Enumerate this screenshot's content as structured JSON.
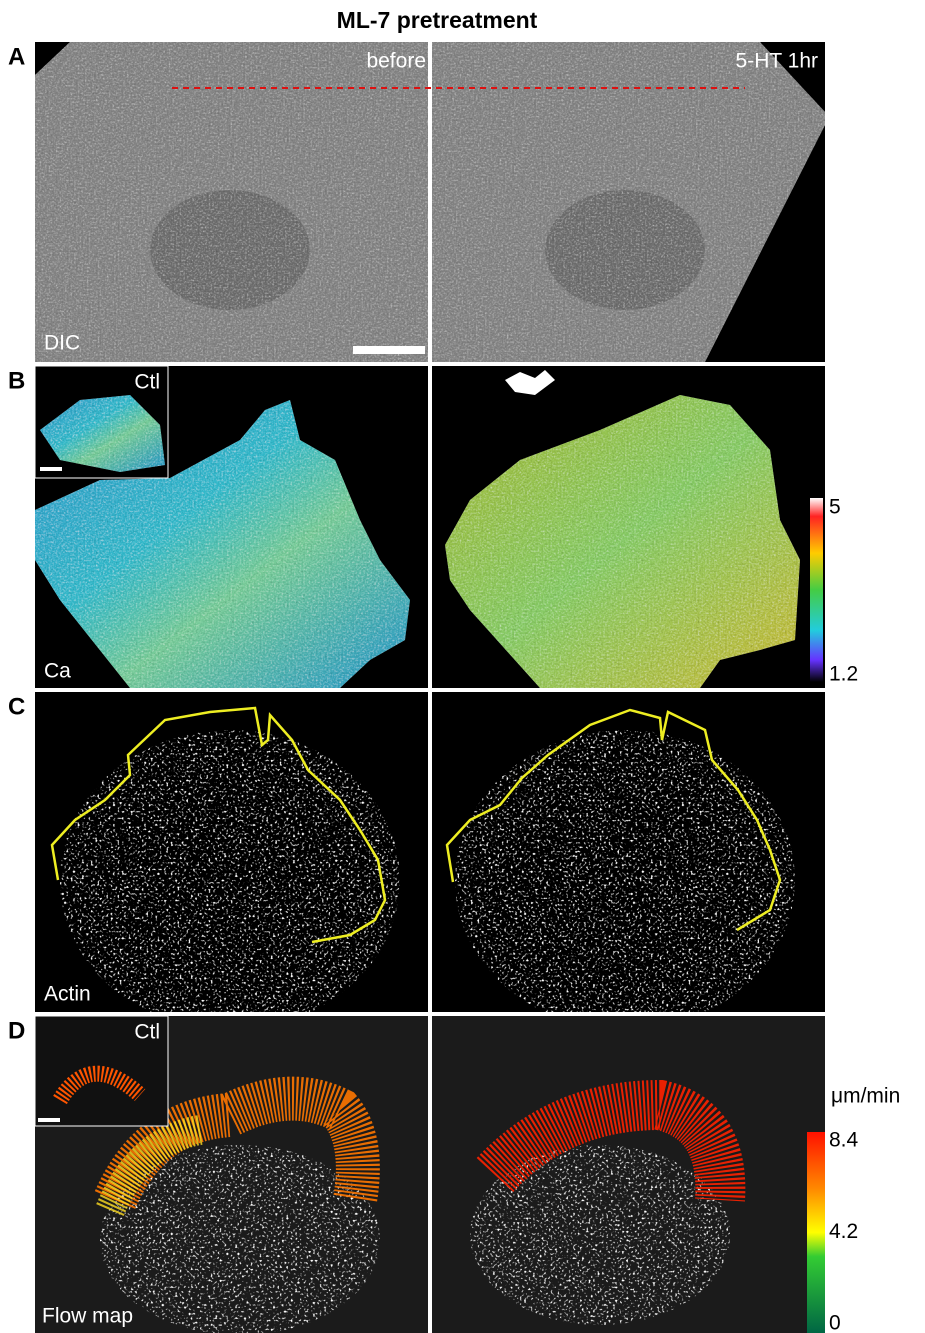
{
  "title": "ML-7 pretreatment",
  "panel_a": {
    "letter": "A",
    "before": "before",
    "after": "5-HT 1hr",
    "label": "DIC"
  },
  "panel_b": {
    "letter": "B",
    "inset": "Ctl",
    "label": "Ca",
    "colorbar_ticks": [
      5,
      1.2
    ]
  },
  "panel_c": {
    "letter": "C",
    "label": "Actin"
  },
  "panel_d": {
    "letter": "D",
    "inset": "Ctl",
    "label": "Flow map",
    "colorbar_unit": "μm/min",
    "colorbar_ticks": [
      8.4,
      4.2,
      0
    ]
  }
}
